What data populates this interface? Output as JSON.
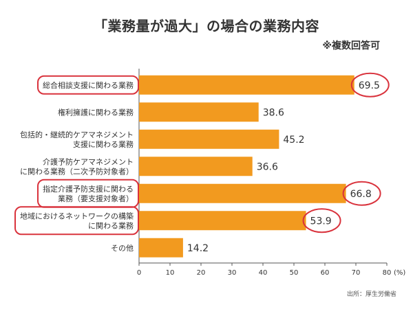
{
  "title": "「業務量が過大」の場合の業務内容",
  "subtitle": "※複数回答可",
  "source": "出所：厚生労働省",
  "colors": {
    "bar": "#F29A1F",
    "highlight": "#D9323C"
  },
  "chart_data": {
    "type": "bar",
    "orientation": "horizontal",
    "categories": [
      [
        "総合相談支援に関わる業務"
      ],
      [
        "権利擁護に関わる業務"
      ],
      [
        "包括的・継続的ケアマネジメント",
        "支援に関わる業務"
      ],
      [
        "介護予防ケアマネジメント",
        "に関わる業務（二次予防対象者）"
      ],
      [
        "指定介護予防支援に関わる",
        "業務（要支援対象者）"
      ],
      [
        "地域におけるネットワークの構築",
        "に関わる業務"
      ],
      [
        "その他"
      ]
    ],
    "values": [
      69.5,
      38.6,
      45.2,
      36.6,
      66.8,
      53.9,
      14.2
    ],
    "highlighted": [
      true,
      false,
      false,
      false,
      true,
      true,
      false
    ],
    "xlim": [
      0,
      80
    ],
    "xticks": [
      0,
      10,
      20,
      30,
      40,
      50,
      60,
      70,
      80
    ],
    "xunit": "(%)",
    "grid": false
  }
}
